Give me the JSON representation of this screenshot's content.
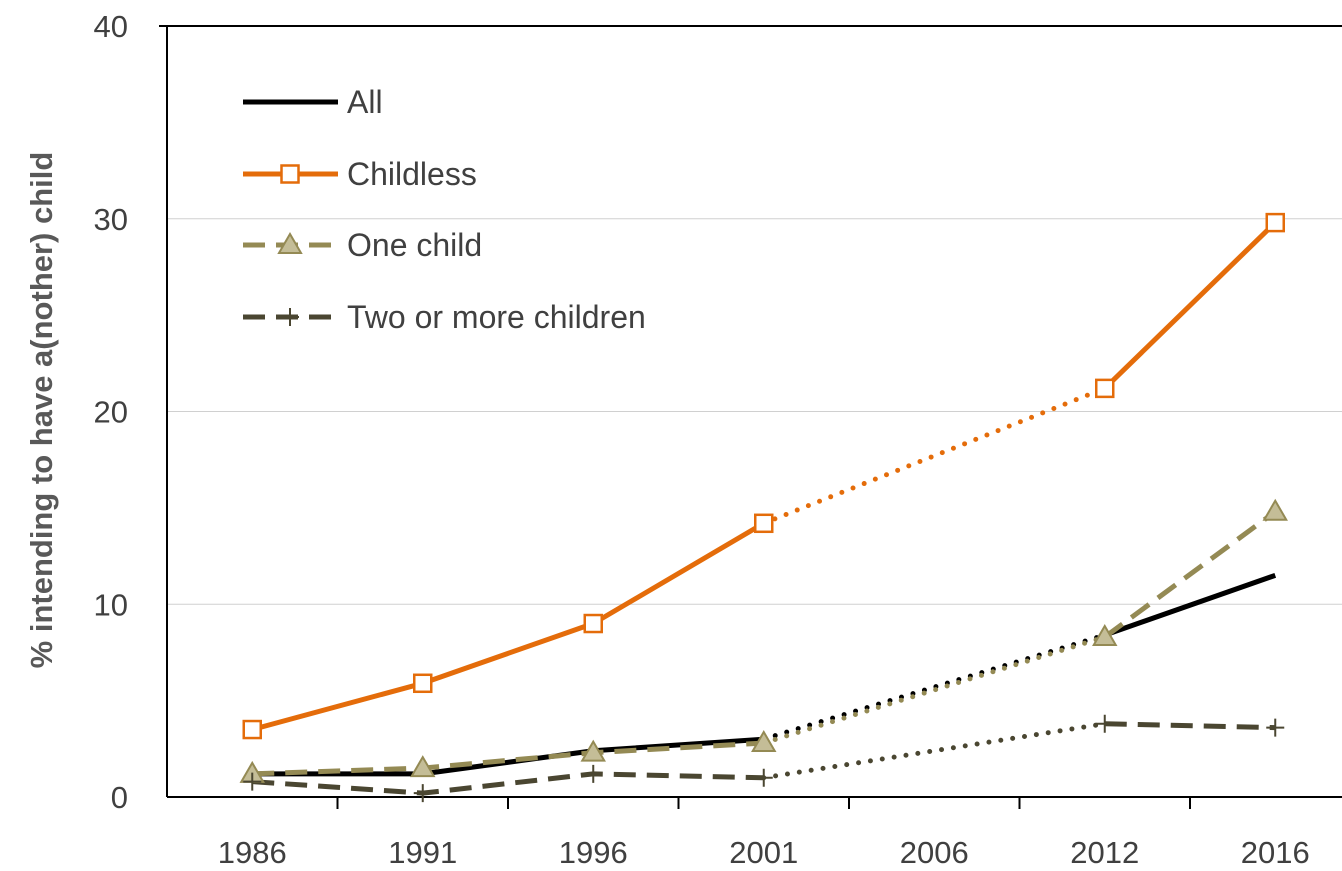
{
  "chart_data": {
    "type": "line",
    "title": "",
    "xlabel": "",
    "ylabel": "% intending to have a(nother) child",
    "categories": [
      "1986",
      "1991",
      "1996",
      "2001",
      "2006",
      "2012",
      "2016"
    ],
    "ylim": [
      0,
      40
    ],
    "yticks": [
      "0",
      "10",
      "20",
      "30",
      "40"
    ],
    "grid": true,
    "legend_position": "top-left",
    "series": [
      {
        "name": "All",
        "color": "#000000",
        "line_style": "solid",
        "marker": "none",
        "values": [
          1.2,
          1.2,
          2.4,
          3.0,
          null,
          8.4,
          11.5
        ]
      },
      {
        "name": "Childless",
        "color": "#E46C0A",
        "line_style": "solid",
        "marker": "hollow-square",
        "values": [
          3.5,
          5.9,
          9.0,
          14.2,
          null,
          21.2,
          29.8
        ]
      },
      {
        "name": "One child",
        "color": "#948A54",
        "line_style": "dashed",
        "marker": "triangle",
        "values": [
          1.2,
          1.5,
          2.3,
          2.8,
          null,
          8.3,
          14.8
        ]
      },
      {
        "name": "Two or more children",
        "color": "#4A4631",
        "line_style": "dashed",
        "marker": "plus",
        "values": [
          0.8,
          0.2,
          1.2,
          1.0,
          null,
          3.8,
          3.6
        ]
      }
    ],
    "interpolated_gap": [
      "2001",
      "2012"
    ]
  }
}
